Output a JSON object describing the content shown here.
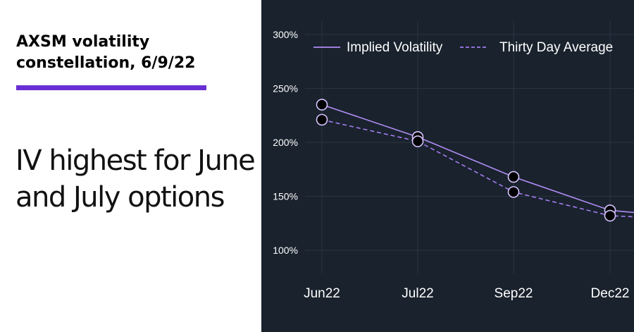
{
  "headline": "AXSM volatility constellation, 6/9/22",
  "subhead": "IV highest for June and July options",
  "colors": {
    "accent_bar": "#6a2fd4",
    "chart_bg": "#19222d",
    "grid": "#2a3542",
    "axis_text": "#ffffff",
    "iv_line": "#b08cf5",
    "avg_line": "#a47cf0",
    "marker_fill": "#000000",
    "marker_stroke": "#d7c4ff"
  },
  "chart_data": {
    "type": "line",
    "title": "",
    "xlabel": "",
    "ylabel": "",
    "categories": [
      "Jun22",
      "Jul22",
      "Sep22",
      "Dec22"
    ],
    "y_ticks": [
      "300%",
      "250%",
      "200%",
      "150%",
      "100%"
    ],
    "y_tick_values": [
      300,
      250,
      200,
      150,
      100
    ],
    "ylim": [
      85,
      300
    ],
    "grid": true,
    "legend_position": "top-right",
    "series": [
      {
        "name": "Implied Volatility",
        "style": "solid",
        "values": [
          235,
          205,
          168,
          137
        ],
        "trail_value": 135
      },
      {
        "name": "Thirty Day Average",
        "style": "dashed",
        "values": [
          221,
          201,
          154,
          132
        ],
        "trail_value": 131
      }
    ]
  }
}
